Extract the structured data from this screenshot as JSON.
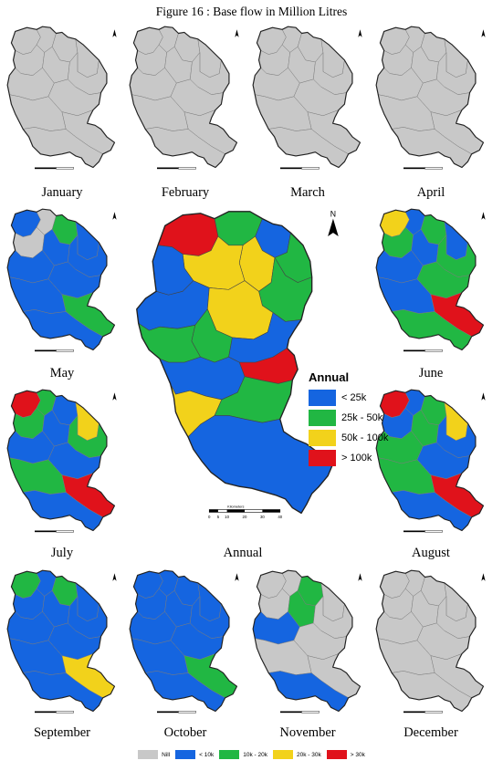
{
  "title": "Figure 16 : Base flow in Million Litres",
  "colors": {
    "nil": "#c8c8c8",
    "blue": "#1565e0",
    "green": "#21b743",
    "yellow": "#f2d21b",
    "red": "#e0121b",
    "outline": "#222222",
    "minor": "#7a7a7a"
  },
  "months": [
    {
      "label": "January",
      "key": "jan",
      "fills": [
        "nil",
        "nil",
        "nil",
        "nil",
        "nil",
        "nil",
        "nil",
        "nil",
        "nil",
        "nil",
        "nil",
        "nil"
      ]
    },
    {
      "label": "February",
      "key": "feb",
      "fills": [
        "nil",
        "nil",
        "nil",
        "nil",
        "nil",
        "nil",
        "nil",
        "nil",
        "nil",
        "nil",
        "nil",
        "nil"
      ]
    },
    {
      "label": "March",
      "key": "mar",
      "fills": [
        "nil",
        "nil",
        "nil",
        "nil",
        "nil",
        "nil",
        "nil",
        "nil",
        "nil",
        "nil",
        "nil",
        "nil"
      ]
    },
    {
      "label": "April",
      "key": "apr",
      "fills": [
        "nil",
        "nil",
        "nil",
        "nil",
        "nil",
        "nil",
        "nil",
        "nil",
        "nil",
        "nil",
        "nil",
        "nil"
      ]
    },
    {
      "label": "May",
      "key": "may",
      "fills": [
        "blue",
        "nil",
        "green",
        "blue",
        "nil",
        "blue",
        "blue",
        "blue",
        "blue",
        "green",
        "blue",
        "blue"
      ]
    },
    {
      "label": "June",
      "key": "jun",
      "fills": [
        "yellow",
        "blue",
        "green",
        "blue",
        "green",
        "blue",
        "green",
        "blue",
        "green",
        "red",
        "blue",
        "green"
      ]
    },
    {
      "label": "July",
      "key": "jul",
      "fills": [
        "red",
        "green",
        "blue",
        "yellow",
        "green",
        "blue",
        "green",
        "blue",
        "blue",
        "red",
        "green",
        "blue"
      ]
    },
    {
      "label": "August",
      "key": "aug",
      "fills": [
        "red",
        "blue",
        "green",
        "yellow",
        "blue",
        "green",
        "blue",
        "green",
        "blue",
        "red",
        "green",
        "blue"
      ]
    },
    {
      "label": "September",
      "key": "sep",
      "fills": [
        "green",
        "blue",
        "green",
        "blue",
        "blue",
        "blue",
        "blue",
        "blue",
        "blue",
        "yellow",
        "blue",
        "blue"
      ]
    },
    {
      "label": "October",
      "key": "oct",
      "fills": [
        "blue",
        "blue",
        "blue",
        "blue",
        "blue",
        "blue",
        "blue",
        "blue",
        "blue",
        "green",
        "blue",
        "blue"
      ]
    },
    {
      "label": "November",
      "key": "nov",
      "fills": [
        "nil",
        "nil",
        "green",
        "nil",
        "nil",
        "green",
        "nil",
        "blue",
        "nil",
        "nil",
        "nil",
        "blue"
      ]
    },
    {
      "label": "December",
      "key": "dec",
      "fills": [
        "nil",
        "nil",
        "nil",
        "nil",
        "nil",
        "nil",
        "nil",
        "nil",
        "nil",
        "nil",
        "nil",
        "nil"
      ]
    }
  ],
  "annual": {
    "label": "Annual",
    "legend_title": "Annual",
    "classes": [
      {
        "label": "< 25k",
        "color": "blue"
      },
      {
        "label": "25k - 50k",
        "color": "green"
      },
      {
        "label": "50k - 100k",
        "color": "yellow"
      },
      {
        "label": "> 100k",
        "color": "red"
      }
    ],
    "fills": [
      "red",
      "green",
      "blue",
      "yellow",
      "green",
      "yellow",
      "blue",
      "green",
      "blue",
      "yellow",
      "green",
      "blue",
      "green",
      "red",
      "blue",
      "yellow",
      "green",
      "blue"
    ],
    "scale_unit": "Kilometers",
    "scale_ticks": [
      "0",
      "5",
      "10",
      "20",
      "30",
      "40"
    ],
    "north": "N"
  },
  "monthly_legend": [
    {
      "label": "Nill",
      "color": "nil"
    },
    {
      "label": "< 10k",
      "color": "blue"
    },
    {
      "label": "10k - 20k",
      "color": "green"
    },
    {
      "label": "20k - 30k",
      "color": "yellow"
    },
    {
      "label": "> 30k",
      "color": "red"
    }
  ]
}
